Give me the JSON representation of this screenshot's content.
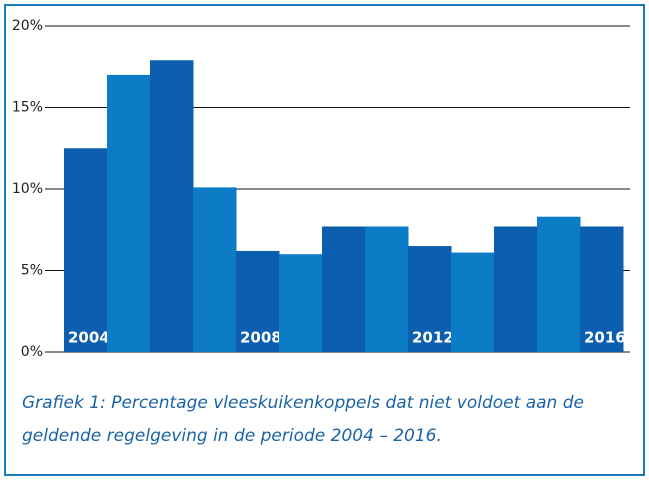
{
  "chart_data": {
    "type": "bar",
    "categories": [
      "2004",
      null,
      null,
      null,
      "2008",
      null,
      null,
      null,
      "2012",
      null,
      null,
      null,
      "2016"
    ],
    "values": [
      12.5,
      17.0,
      17.9,
      10.1,
      6.2,
      6.0,
      7.7,
      7.7,
      6.5,
      6.1,
      7.7,
      8.3,
      7.7
    ],
    "colors": [
      "#0b5fae",
      "#0b7cc5",
      "#0b5fae",
      "#0b7cc5",
      "#0b5fae",
      "#0b7cc5",
      "#0b5fae",
      "#0b7cc5",
      "#0b5fae",
      "#0b7cc5",
      "#0b5fae",
      "#0b7cc5",
      "#0b5fae"
    ],
    "ylim": [
      0,
      20
    ],
    "yticks": [
      {
        "value": 0,
        "label": "0%"
      },
      {
        "value": 5,
        "label": "5%"
      },
      {
        "value": 10,
        "label": "10%"
      },
      {
        "value": 15,
        "label": "15%"
      },
      {
        "value": 20,
        "label": "20%"
      }
    ],
    "grid": true,
    "caption": [
      "Grafiek 1: Percentage vleeskuikenkoppels dat niet voldoet aan de",
      "geldende regelgeving in de periode 2004 – 2016."
    ]
  }
}
